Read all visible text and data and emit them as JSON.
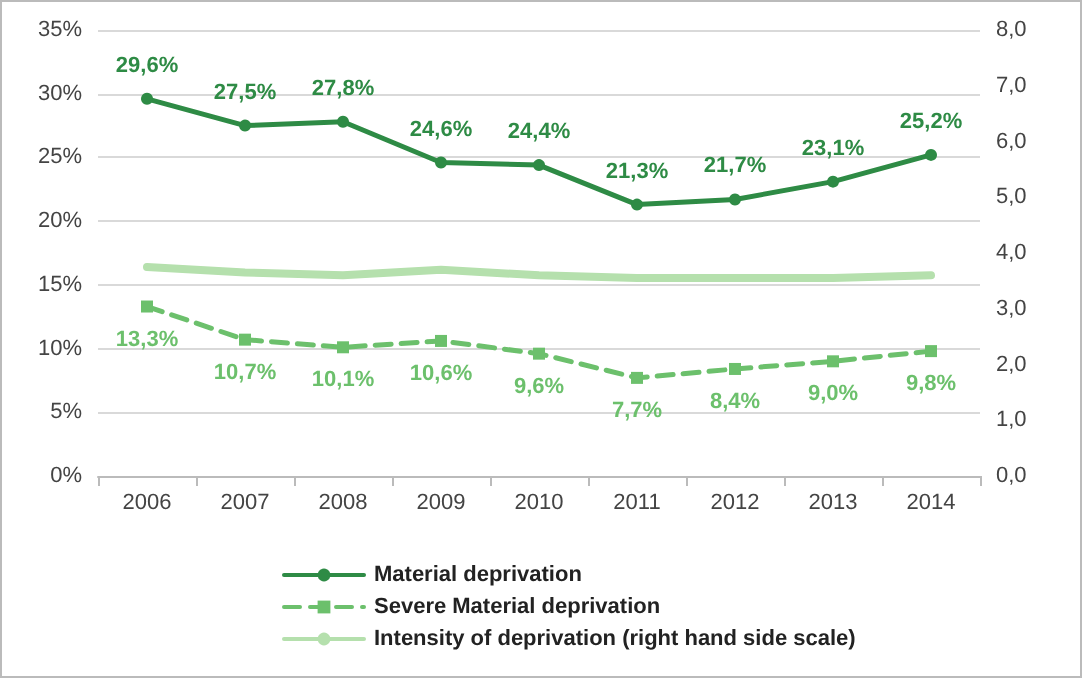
{
  "chart_data": {
    "type": "line",
    "categories": [
      "2006",
      "2007",
      "2008",
      "2009",
      "2010",
      "2011",
      "2012",
      "2013",
      "2014"
    ],
    "series": [
      {
        "name": "Material deprivation",
        "color": "#2e8b45",
        "marker": "circle",
        "line_style": "solid",
        "values": [
          29.6,
          27.5,
          27.8,
          24.6,
          24.4,
          21.3,
          21.7,
          23.1,
          25.2
        ],
        "value_labels": [
          "29,6%",
          "27,5%",
          "27,8%",
          "24,6%",
          "24,4%",
          "21,3%",
          "21,7%",
          "23,1%",
          "25,2%"
        ]
      },
      {
        "name": "Severe Material deprivation",
        "color": "#6cc06c",
        "marker": "square",
        "line_style": "dashed",
        "values": [
          13.3,
          10.7,
          10.1,
          10.6,
          9.6,
          7.7,
          8.4,
          9.0,
          9.8
        ],
        "value_labels": [
          "13,3%",
          "10,7%",
          "10,1%",
          "10,6%",
          "9,6%",
          "7,7%",
          "8,4%",
          "9,0%",
          "9,8%"
        ]
      },
      {
        "name": "Intensity of deprivation (right hand side scale)",
        "color": "#b5e0ad",
        "marker": "none",
        "line_style": "solid",
        "axis": "y2",
        "values": [
          3.75,
          3.65,
          3.6,
          3.7,
          3.6,
          3.55,
          3.55,
          3.55,
          3.6
        ]
      }
    ],
    "ylim": [
      0,
      35
    ],
    "yticks": [
      {
        "value": 0,
        "label": "0%"
      },
      {
        "value": 5,
        "label": "5%"
      },
      {
        "value": 10,
        "label": "10%"
      },
      {
        "value": 15,
        "label": "15%"
      },
      {
        "value": 20,
        "label": "20%"
      },
      {
        "value": 25,
        "label": "25%"
      },
      {
        "value": 30,
        "label": "30%"
      },
      {
        "value": 35,
        "label": "35%"
      }
    ],
    "y2lim": [
      0,
      8
    ],
    "y2ticks": [
      {
        "value": 0,
        "label": "0,0"
      },
      {
        "value": 1,
        "label": "1,0"
      },
      {
        "value": 2,
        "label": "2,0"
      },
      {
        "value": 3,
        "label": "3,0"
      },
      {
        "value": 4,
        "label": "4,0"
      },
      {
        "value": 5,
        "label": "5,0"
      },
      {
        "value": 6,
        "label": "6,0"
      },
      {
        "value": 7,
        "label": "7,0"
      },
      {
        "value": 8,
        "label": "8,0"
      }
    ],
    "grid": "y",
    "legend": "bottom"
  }
}
